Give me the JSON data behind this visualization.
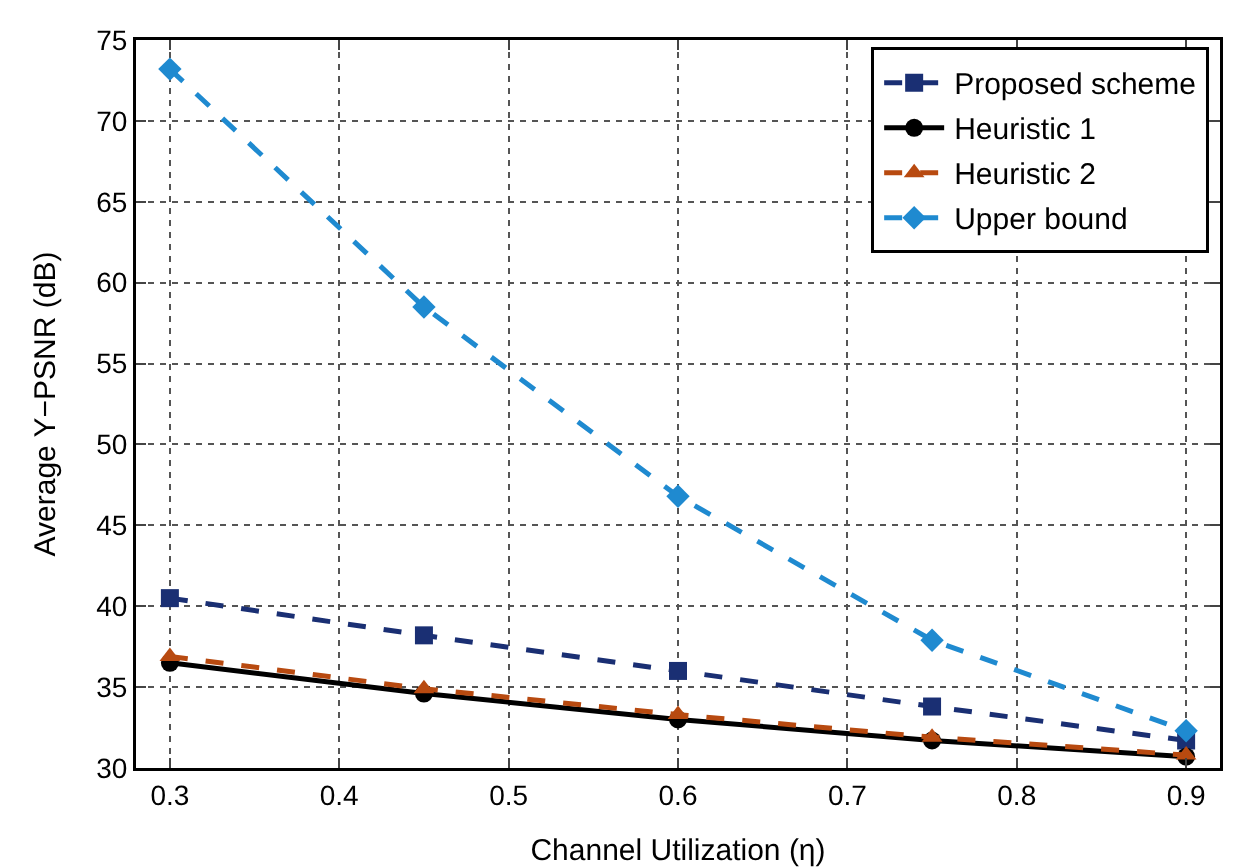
{
  "chart_data": {
    "type": "line",
    "xlabel": "Channel Utilization (η)",
    "ylabel": "Average Y−PSNR (dB)",
    "x": [
      0.3,
      0.45,
      0.6,
      0.75,
      0.9
    ],
    "series": [
      {
        "name": "Proposed scheme",
        "color": "#1a2f73",
        "values": [
          40.5,
          38.2,
          36.0,
          33.8,
          31.7
        ],
        "marker": "square",
        "line_style": "dashed"
      },
      {
        "name": "Heuristic 1",
        "color": "#000000",
        "values": [
          36.5,
          34.6,
          33.0,
          31.7,
          30.7
        ],
        "marker": "circle",
        "line_style": "solid"
      },
      {
        "name": "Heuristic 2",
        "color": "#b84a10",
        "values": [
          36.9,
          34.9,
          33.3,
          31.9,
          30.8
        ],
        "marker": "triangle",
        "line_style": "dashed"
      },
      {
        "name": "Upper bound",
        "color": "#1f8ad0",
        "values": [
          73.2,
          58.5,
          46.8,
          37.9,
          32.3
        ],
        "marker": "diamond",
        "line_style": "dashed"
      }
    ],
    "xlim": [
      0.28,
      0.92
    ],
    "xticks": [
      0.3,
      0.4,
      0.5,
      0.6,
      0.7,
      0.8,
      0.9
    ],
    "ylim": [
      30,
      75
    ],
    "yticks": [
      30,
      35,
      40,
      45,
      50,
      55,
      60,
      65,
      70,
      75
    ],
    "grid": true,
    "legend": "top right"
  }
}
